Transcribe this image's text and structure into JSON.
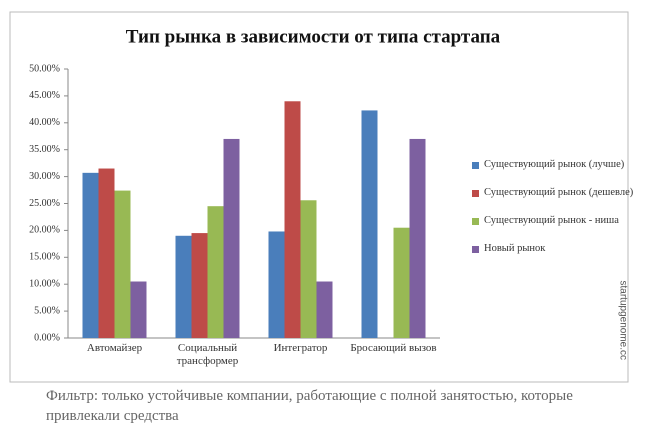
{
  "chart_data": {
    "type": "bar",
    "title": "Тип рынка в зависимости от типа стартапа",
    "categories": [
      "Автомайзер",
      "Социальный трансформер",
      "Интегратор",
      "Бросающий вызов"
    ],
    "series": [
      {
        "name": "Существующий рынок (лучше)",
        "color": "#4a7ebb",
        "values": [
          30.7,
          19.0,
          19.8,
          42.3
        ]
      },
      {
        "name": "Существующий рынок (дешевле)",
        "color": "#be4b48",
        "values": [
          31.5,
          19.5,
          44.0,
          null
        ]
      },
      {
        "name": "Существующий рынок - ниша",
        "color": "#98b954",
        "values": [
          27.4,
          24.5,
          25.6,
          20.5
        ]
      },
      {
        "name": "Новый рынок",
        "color": "#7d60a0",
        "values": [
          10.5,
          37.0,
          10.5,
          37.0
        ]
      }
    ],
    "ylim": [
      0,
      50
    ],
    "yticks": [
      {
        "value": 0,
        "label": "0.00%"
      },
      {
        "value": 5,
        "label": "5.00%"
      },
      {
        "value": 10,
        "label": "10.00%"
      },
      {
        "value": 15,
        "label": "15.00%"
      },
      {
        "value": 20,
        "label": "20.00%"
      },
      {
        "value": 25,
        "label": "25.00%"
      },
      {
        "value": 30,
        "label": "30.00%"
      },
      {
        "value": 35,
        "label": "35.00%"
      },
      {
        "value": 40,
        "label": "40.00%"
      },
      {
        "value": 45,
        "label": "45.00%"
      },
      {
        "value": 50,
        "label": "50.00%"
      }
    ],
    "grid": false,
    "legend": "right",
    "watermark": "startupgenome.cc",
    "footnote": "Фильтр: только устойчивые компании, работающие с полной занятостью, которые привлекали средства"
  }
}
